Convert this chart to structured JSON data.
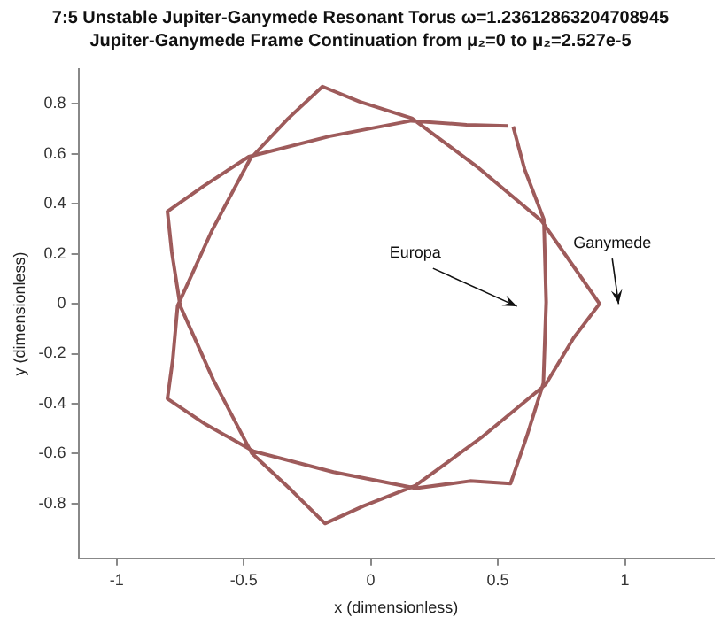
{
  "chart_data": {
    "type": "line",
    "title": "7:5 Unstable Jupiter-Ganymede Resonant Torus ω=1.23612863204708945",
    "subtitle": "Jupiter-Ganymede Frame Continuation from μ₂=0 to μ₂=2.527e-5",
    "xlabel": "x (dimensionless)",
    "ylabel": "y (dimensionless)",
    "xlim": [
      -1.15,
      1.35
    ],
    "xticks": [
      -1,
      -0.5,
      0,
      0.5,
      1
    ],
    "ylim": [
      -1.02,
      0.94
    ],
    "yticks": [
      -0.8,
      -0.6,
      -0.4,
      -0.2,
      0,
      0.2,
      0.4,
      0.6,
      0.8
    ],
    "grid": false,
    "legend": false,
    "annotations": [
      "Europa",
      "Ganymede"
    ],
    "x": [
      0.56,
      0.605,
      0.681,
      0.69,
      0.679,
      0.615,
      0.55,
      0.391,
      0.177,
      -0.147,
      -0.461,
      -0.651,
      -0.8,
      -0.779,
      -0.76,
      -0.625,
      -0.474,
      -0.325,
      -0.19,
      -0.044,
      0.162,
      0.424,
      0.672,
      0.796,
      0.9,
      0.798,
      0.688,
      0.436,
      0.175,
      -0.029,
      -0.18,
      -0.311,
      -0.468,
      -0.619,
      -0.75,
      -0.783,
      -0.8,
      -0.66,
      -0.48,
      -0.161,
      0.159,
      0.377,
      0.54
    ],
    "series": [
      {
        "color": "#9e5b5b",
        "values": [
          0.71,
          0.539,
          0.337,
          0.007,
          -0.318,
          -0.527,
          -0.72,
          -0.71,
          -0.739,
          -0.674,
          -0.591,
          -0.482,
          -0.38,
          -0.223,
          -0.008,
          0.293,
          0.581,
          0.742,
          0.87,
          0.809,
          0.743,
          0.544,
          0.332,
          0.152,
          0.0,
          -0.137,
          -0.323,
          -0.535,
          -0.729,
          -0.81,
          -0.88,
          -0.748,
          -0.599,
          -0.306,
          -0.008,
          0.208,
          0.37,
          0.47,
          0.589,
          0.671,
          0.733,
          0.717,
          0.712
        ]
      }
    ]
  }
}
